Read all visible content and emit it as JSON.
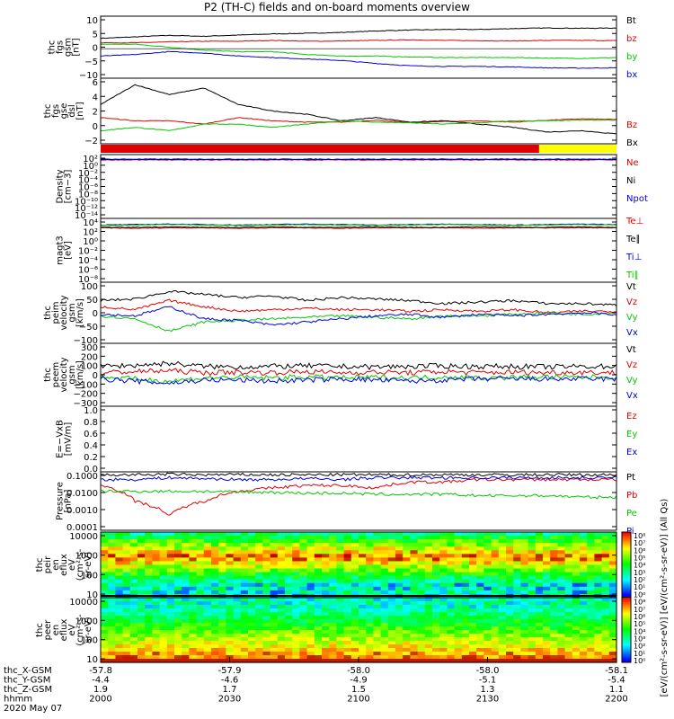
{
  "title": "P2 (TH-C) fields and on-board moments overview",
  "colors": {
    "black": "#000000",
    "red": "#e00000",
    "green": "#00c800",
    "blue": "#0000e0",
    "yellow": "#ffff00"
  },
  "chart_data": [
    {
      "type": "line",
      "name": "fgs-gsm",
      "ylabel": [
        "thc",
        "fgs",
        "gsm",
        "[nT]"
      ],
      "yticks": [
        "10",
        "5",
        "0",
        "−5",
        "−10"
      ],
      "ylim": [
        -10,
        11
      ],
      "series": [
        {
          "name": "Bt",
          "color": "black",
          "values": [
            3.5,
            4,
            4.5,
            4.2,
            4.6,
            5,
            5.2,
            5.5,
            6,
            6.3,
            6.5,
            6.5,
            6.8,
            7,
            6.9,
            7
          ]
        },
        {
          "name": "bz",
          "color": "red",
          "values": [
            2,
            2,
            2.3,
            2.5,
            2.5,
            2.8,
            2.5,
            2.6,
            2.8,
            3,
            2.8,
            2.7,
            2.6,
            2.8,
            2.8,
            2.7
          ]
        },
        {
          "name": "by",
          "color": "green",
          "values": [
            1.5,
            1.5,
            0.5,
            -0.5,
            -1,
            -1,
            -2,
            -2.5,
            -2.5,
            -2.8,
            -3,
            -3,
            -3,
            -3.2,
            -3.3,
            -3
          ]
        },
        {
          "name": "bx",
          "color": "blue",
          "values": [
            -2.5,
            -2,
            -1,
            -1.5,
            -2.5,
            -3,
            -3.5,
            -4,
            -5,
            -5.8,
            -6,
            -6,
            -6.2,
            -6.5,
            -6.6,
            -6.5
          ]
        }
      ]
    },
    {
      "type": "line",
      "name": "fgs-gse-dsl",
      "ylabel": [
        "thc",
        "fgs",
        "gse",
        "dsl",
        "[nT]"
      ],
      "yticks": [
        "6",
        "4",
        "2",
        "0",
        "−2"
      ],
      "ylim": [
        -3,
        7
      ],
      "series": [
        {
          "name": "Bz",
          "color": "red",
          "values": [
            1,
            0.5,
            0.5,
            0,
            1,
            0.5,
            0.3,
            0.3,
            0.6,
            0.2,
            0.4,
            0.5,
            0.3,
            0.6,
            0.8,
            0.7
          ]
        },
        {
          "name": "Bx",
          "color": "black",
          "values": [
            3,
            6,
            4.5,
            5.5,
            3,
            2,
            1.5,
            0.5,
            1,
            0.3,
            0.5,
            0,
            -0.5,
            -1.2,
            -1,
            -1.5
          ]
        }
      ],
      "extra_series": [
        {
          "color": "green",
          "values": [
            -1,
            -0.5,
            -1,
            0,
            0,
            -0.5,
            0,
            0.5,
            0.3,
            0.2,
            0,
            0.2,
            0.5,
            0.5,
            0.6,
            0.6
          ]
        }
      ]
    },
    {
      "type": "bar",
      "name": "mode-bar",
      "segments": [
        {
          "color": "red",
          "start": 0,
          "end": 0.85
        },
        {
          "color": "yellow",
          "start": 0.85,
          "end": 1
        }
      ]
    },
    {
      "type": "line",
      "name": "density",
      "ylabel": [
        "Density",
        "[cm−3]"
      ],
      "yticks": [
        "10²",
        "10⁰",
        "10⁻²",
        "10⁻⁴",
        "10⁻⁶",
        "10⁻⁸",
        "10⁻¹⁰",
        "10⁻¹²",
        "10⁻¹⁴"
      ],
      "ylim": [
        -15,
        3
      ],
      "series": [
        {
          "name": "Ne",
          "color": "red",
          "values": [
            1.5,
            1.5,
            1.5,
            1.5,
            1.5,
            1.5,
            1.5,
            1.5,
            1.5,
            1.5,
            1.5,
            1.5,
            1.5,
            1.5,
            1.5,
            1.5
          ]
        },
        {
          "name": "Ni",
          "color": "black",
          "values": [
            1.7,
            1.7,
            1.7,
            1.7,
            1.7,
            1.7,
            1.7,
            1.7,
            1.7,
            1.7,
            1.7,
            1.7,
            1.7,
            1.7,
            1.7,
            1.7
          ]
        },
        {
          "name": "Npot",
          "color": "blue",
          "values": [
            1.6,
            1.6,
            1.6,
            1.6,
            1.6,
            1.6,
            1.6,
            1.6,
            1.6,
            1.6,
            1.6,
            1.6,
            1.6,
            1.6,
            1.6,
            1.6
          ]
        }
      ]
    },
    {
      "type": "line",
      "name": "temperature",
      "ylabel": [
        "magt3",
        "[eV]"
      ],
      "yticks": [
        "10⁴",
        "10²",
        "10⁰",
        "10⁻²",
        "10⁻⁴",
        "10⁻⁶",
        "10⁻⁸"
      ],
      "ylim": [
        -9,
        4.5
      ],
      "series": [
        {
          "name": "Te⊥",
          "color": "red",
          "values": [
            2.5,
            2.4,
            2.5,
            2.5,
            2.4,
            2.5,
            2.5,
            2.4,
            2.5,
            2.5,
            2.5,
            2.4,
            2.5,
            2.5,
            2.5,
            2.5
          ]
        },
        {
          "name": "Te∥",
          "color": "black",
          "values": [
            2.6,
            2.6,
            2.7,
            2.6,
            2.6,
            2.7,
            2.6,
            2.6,
            2.7,
            2.6,
            2.6,
            2.7,
            2.6,
            2.6,
            2.7,
            2.6
          ]
        },
        {
          "name": "Ti⊥",
          "color": "blue",
          "values": [
            3.1,
            3.2,
            3.3,
            3.2,
            3.1,
            3.2,
            3.3,
            3.2,
            3.1,
            3.2,
            3.3,
            3.2,
            3.1,
            3.2,
            3.3,
            3.2
          ]
        },
        {
          "name": "Ti∥",
          "color": "green",
          "values": [
            3,
            3.1,
            3.2,
            3.1,
            3,
            3.1,
            3.2,
            3.1,
            3,
            3.1,
            3.2,
            3.1,
            3,
            3.1,
            3.2,
            3.1
          ]
        }
      ]
    },
    {
      "type": "line",
      "name": "peim-velocity",
      "ylabel": [
        "thc",
        "peim",
        "velocity",
        "gsm",
        "[km/s]"
      ],
      "yticks": [
        "100",
        "50",
        "0",
        "−50",
        "−100"
      ],
      "ylim": [
        -100,
        100
      ],
      "series": [
        {
          "name": "Vt",
          "color": "black",
          "values": [
            40,
            45,
            70,
            60,
            50,
            55,
            40,
            50,
            45,
            40,
            30,
            35,
            40,
            30,
            30,
            25
          ]
        },
        {
          "name": "Vz",
          "color": "red",
          "values": [
            20,
            10,
            40,
            20,
            5,
            10,
            15,
            10,
            10,
            5,
            10,
            5,
            10,
            0,
            5,
            5
          ]
        },
        {
          "name": "Vy",
          "color": "green",
          "values": [
            -10,
            -20,
            -60,
            -30,
            -25,
            -20,
            -15,
            -10,
            -15,
            -20,
            -10,
            -10,
            -5,
            0,
            -5,
            0
          ]
        },
        {
          "name": "Vx",
          "color": "blue",
          "values": [
            -5,
            -10,
            20,
            -20,
            -25,
            -40,
            -30,
            -20,
            -10,
            -5,
            -15,
            -5,
            -10,
            -5,
            0,
            -5
          ]
        }
      ]
    },
    {
      "type": "line",
      "name": "peem-velocity",
      "ylabel": [
        "thc",
        "peem",
        "velocity",
        "gsm",
        "[km/s]"
      ],
      "yticks": [
        "300",
        "200",
        "100",
        "0",
        "−100",
        "−200",
        "−300"
      ],
      "ylim": [
        -300,
        300
      ],
      "series": [
        {
          "name": "Vt",
          "color": "black",
          "values": [
            80,
            90,
            110,
            80,
            75,
            80,
            85,
            80,
            75,
            80,
            85,
            80,
            80,
            75,
            80,
            80
          ]
        },
        {
          "name": "Vz",
          "color": "red",
          "values": [
            20,
            30,
            40,
            20,
            25,
            20,
            30,
            20,
            25,
            20,
            30,
            20,
            25,
            20,
            25,
            20
          ]
        },
        {
          "name": "Vy",
          "color": "green",
          "values": [
            -20,
            -40,
            -60,
            -30,
            -25,
            -30,
            -20,
            -30,
            -25,
            -30,
            -20,
            -30,
            -25,
            -20,
            -25,
            -20
          ]
        },
        {
          "name": "Vx",
          "color": "blue",
          "values": [
            -40,
            -60,
            -80,
            -50,
            -50,
            -60,
            -50,
            -40,
            -50,
            -60,
            -50,
            -40,
            -40,
            -40,
            -40,
            -40
          ]
        }
      ]
    },
    {
      "type": "line",
      "name": "efield",
      "ylabel": [
        "E=−VxB",
        "[mV/m]"
      ],
      "yticks": [
        "1.0",
        "0.8",
        "0.6",
        "0.4",
        "0.2",
        "0.0"
      ],
      "ylim": [
        0,
        1
      ],
      "series": [
        {
          "name": "Ez",
          "color": "red",
          "values": []
        },
        {
          "name": "Ey",
          "color": "green",
          "values": []
        },
        {
          "name": "Ex",
          "color": "blue",
          "values": []
        }
      ]
    },
    {
      "type": "line",
      "name": "pressure",
      "yscale": "log",
      "ylabel": [
        "Pressure",
        "[nPa]"
      ],
      "yticks": [
        "0.1000",
        "0.0100",
        "0.0010",
        "0.0001"
      ],
      "ylim": [
        0.0001,
        0.1
      ],
      "series": [
        {
          "name": "Pt",
          "color": "black",
          "values": [
            0.07,
            0.07,
            0.075,
            0.07,
            0.072,
            0.07,
            0.07,
            0.072,
            0.07,
            0.07,
            0.072,
            0.07,
            0.07,
            0.072,
            0.07,
            0.07
          ]
        },
        {
          "name": "Pb",
          "color": "red",
          "values": [
            0.02,
            0.003,
            0.0005,
            0.003,
            0.01,
            0.015,
            0.02,
            0.02,
            0.015,
            0.03,
            0.03,
            0.04,
            0.04,
            0.04,
            0.04,
            0.04
          ]
        },
        {
          "name": "Pe",
          "color": "green",
          "values": [
            0.01,
            0.01,
            0.01,
            0.01,
            0.009,
            0.009,
            0.008,
            0.008,
            0.007,
            0.007,
            0.007,
            0.006,
            0.006,
            0.006,
            0.005,
            0.005
          ]
        },
        {
          "name": "Pi",
          "color": "blue",
          "values": [
            0.04,
            0.04,
            0.05,
            0.045,
            0.04,
            0.04,
            0.045,
            0.04,
            0.05,
            0.05,
            0.05,
            0.05,
            0.05,
            0.05,
            0.05,
            0.05
          ]
        }
      ]
    },
    {
      "type": "heatmap",
      "name": "peir-en-eflux",
      "ylabel": [
        "thc",
        "peir",
        "en",
        "eflux",
        "eV",
        "(cm²-s-",
        "sr-eV)"
      ],
      "yticks": [
        "10000",
        "1000",
        "100",
        "10"
      ]
    },
    {
      "type": "heatmap",
      "name": "peer-en-eflux",
      "ylabel": [
        "thc",
        "peer",
        "en",
        "eflux",
        "eV",
        "(cm²-s-",
        "sr-eV)"
      ],
      "yticks": [
        "10000",
        "1000",
        "100",
        "10"
      ]
    }
  ],
  "colorbar": {
    "ticks": [
      "10⁸",
      "10⁷",
      "10⁶",
      "10⁵",
      "10⁴",
      "10³",
      "10²",
      "10¹",
      "10⁰",
      "10⁸",
      "10⁷",
      "10⁶",
      "10⁵",
      "10⁴",
      "10³",
      "10²",
      "10¹",
      "10⁰"
    ],
    "label": "[eV/(cm²-s-sr-eV)] [eV/(cm²-s-sr-eV)] (All Qs)"
  },
  "xaxis": {
    "row_labels": [
      "thc_X-GSM",
      "thc_Y-GSM",
      "thc_Z-GSM",
      "hhmm",
      "2020 May 07"
    ],
    "columns": [
      [
        "-57.8",
        "-4.4",
        "1.9",
        "2000"
      ],
      [
        "-57.9",
        "-4.6",
        "1.7",
        "2030"
      ],
      [
        "-58.0",
        "-4.9",
        "1.5",
        "2100"
      ],
      [
        "-58.0",
        "-5.1",
        "1.3",
        "2130"
      ],
      [
        "-58.1",
        "-5.4",
        "1.1",
        "2200"
      ]
    ]
  }
}
